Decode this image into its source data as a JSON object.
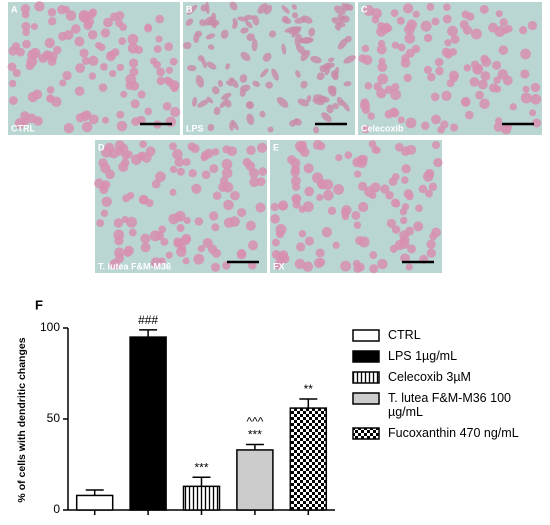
{
  "panels": [
    {
      "letter": "A",
      "label": "CTRL"
    },
    {
      "letter": "B",
      "label": "LPS"
    },
    {
      "letter": "C",
      "label": "Celecoxib"
    },
    {
      "letter": "D",
      "label": "T. lutea F&M-M36"
    },
    {
      "letter": "E",
      "label": "FX"
    }
  ],
  "chart_data": {
    "type": "bar",
    "title": "F",
    "y_label": "% of cells with dendritic changes",
    "categories": [
      null,
      null,
      null,
      null,
      null
    ],
    "ylim": [
      0,
      100
    ],
    "yticks": [
      0,
      50,
      100
    ],
    "series": [
      {
        "name": "CTRL",
        "color": "white",
        "values": [
          8,
          null,
          null,
          null,
          null
        ],
        "errors": [
          3,
          null,
          null,
          null,
          null
        ],
        "annotations": []
      },
      {
        "name": "LPS 1µg/mL",
        "color": "black",
        "values": [
          null,
          95,
          null,
          null,
          null
        ],
        "errors": [
          null,
          4,
          null,
          null,
          null
        ],
        "annotations": [
          "###"
        ]
      },
      {
        "name": "Celecoxib 3µM",
        "color": "stripes",
        "values": [
          null,
          null,
          13,
          null,
          null
        ],
        "errors": [
          null,
          null,
          5,
          null,
          null
        ],
        "annotations": [
          "***"
        ]
      },
      {
        "name": "T. lutea F&M-M36 100 µg/mL",
        "color": "#cccccc",
        "values": [
          null,
          null,
          null,
          33,
          null
        ],
        "errors": [
          null,
          null,
          null,
          3,
          null
        ],
        "annotations": [
          "***",
          "^^^"
        ]
      },
      {
        "name": "Fucoxanthin 470 ng/mL",
        "color": "checker",
        "values": [
          null,
          null,
          null,
          null,
          56
        ],
        "errors": [
          null,
          null,
          null,
          null,
          5
        ],
        "annotations": [
          "**"
        ]
      }
    ]
  }
}
